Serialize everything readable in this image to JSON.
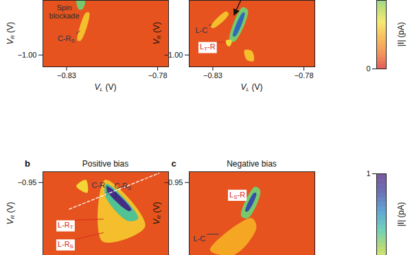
{
  "chart_data": [
    {
      "type": "heatmap",
      "x_label": [
        "V",
        "L",
        " (V)"
      ],
      "y_label": [
        "V",
        "R",
        " (V)"
      ],
      "xlim": [
        -0.843,
        -0.774
      ],
      "xticks": [
        -0.83,
        -0.78
      ],
      "ylim": [
        -1.0065,
        -0.97
      ],
      "yticks": [
        {
          "value": -1,
          "label": "−1.00"
        }
      ],
      "background_current": 0.08,
      "features": [
        {
          "points": [
            [
              -0.8245,
              -0.97
            ],
            [
              -0.82,
              -0.97
            ],
            [
              -0.8212,
              -0.9748
            ],
            [
              -0.8232,
              -0.975
            ]
          ],
          "current": 0.55
        },
        {
          "points": [
            [
              -0.8194,
              -0.9768
            ],
            [
              -0.8175,
              -0.9768
            ],
            [
              -0.8221,
              -0.992
            ],
            [
              -0.824,
              -0.992
            ]
          ],
          "current": 0.3
        }
      ],
      "annotations": [
        {
          "lines": [
            [
              "Spin"
            ],
            [
              "blockade"
            ]
          ],
          "at": [
            -0.8311,
            -0.9768
          ],
          "pointer": [
            -0.8236,
            -0.973
          ],
          "color": "#2b2b2b"
        },
        {
          "lines": [
            [
              "C-R",
              "S"
            ]
          ],
          "at": [
            -0.83,
            -0.9916
          ],
          "pointer": [
            -0.8225,
            -0.987
          ],
          "color": "#1f3550"
        }
      ]
    },
    {
      "type": "heatmap",
      "x_label": [
        "V",
        "L",
        " (V)"
      ],
      "y_label": [
        "V",
        "R",
        " (V)"
      ],
      "xlim": [
        -0.843,
        -0.774
      ],
      "xticks": [
        -0.83,
        -0.78
      ],
      "ylim": [
        -1.0065,
        -0.97
      ],
      "yticks": [
        {
          "value": -1,
          "label": "−1.00"
        }
      ],
      "background_current": 0.08,
      "features": [
        {
          "points": [
            [
              -0.8312,
              -0.9844
            ],
            [
              -0.8296,
              -0.9852
            ],
            [
              -0.8213,
              -0.9776
            ],
            [
              -0.8228,
              -0.9761
            ]
          ],
          "current": 0.3
        },
        {
          "points": [
            [
              -0.8209,
              -0.992
            ],
            [
              -0.8182,
              -0.9927
            ],
            [
              -0.8107,
              -0.9757
            ],
            [
              -0.8137,
              -0.9738
            ]
          ],
          "current": 0.55
        },
        {
          "points": [
            [
              -0.819,
              -0.9897
            ],
            [
              -0.8175,
              -0.9897
            ],
            [
              -0.8125,
              -0.9768
            ],
            [
              -0.8137,
              -0.9768
            ]
          ],
          "current": 0.8
        },
        {
          "points": [
            [
              -0.8228,
              -0.992
            ],
            [
              -0.8197,
              -0.992
            ],
            [
              -0.8205,
              -0.995
            ],
            [
              -0.822,
              -0.995
            ]
          ],
          "current": 0.35
        },
        {
          "points": [
            [
              -0.8126,
              -0.9973
            ],
            [
              -0.8084,
              -0.998
            ],
            [
              -0.8076,
              -1.0033
            ],
            [
              -0.8114,
              -1.0026
            ]
          ],
          "current": 0.3
        }
      ],
      "annotations": [
        {
          "lines": [
            [
              "L-C"
            ]
          ],
          "at": [
            -0.8361,
            -0.987
          ],
          "pointer": [
            -0.8304,
            -0.9836
          ],
          "color": "#1f3550"
        },
        {
          "lines": [
            [
              "L",
              "T",
              "-R"
            ]
          ],
          "at": [
            -0.8327,
            -0.9961
          ],
          "pointer": [
            -0.8228,
            -0.9931
          ],
          "color": "#d7261e",
          "marker": "box"
        }
      ],
      "arrows": [
        [
          [
            -0.8144,
            -0.97
          ],
          [
            -0.8182,
            -0.9783
          ]
        ]
      ]
    },
    {
      "type": "heatmap",
      "panel_label": "b",
      "title": "Positive bias",
      "y_label": [
        "V",
        "R",
        " (V)"
      ],
      "xlim": [
        -0.843,
        -0.774
      ],
      "xticks": [],
      "ylim": [
        -0.9905,
        -0.944
      ],
      "yticks": [
        -0.95
      ],
      "tick_labels": "y",
      "background_current": 0.08,
      "features": [
        {
          "points": [
            [
              -0.8247,
              -0.952
            ],
            [
              -0.8194,
              -0.9485
            ],
            [
              -0.8186,
              -0.9557
            ]
          ],
          "current": 0.35
        },
        {
          "points": [
            [
              -0.8088,
              -0.9485
            ],
            [
              -0.7868,
              -0.9743
            ],
            [
              -0.8103,
              -0.9827
            ]
          ],
          "current": 0.3
        },
        {
          "points": [
            [
              -0.808,
              -0.9508
            ],
            [
              -0.7906,
              -0.9698
            ],
            [
              -0.7963,
              -0.9713
            ],
            [
              -0.8088,
              -0.9573
            ]
          ],
          "current": 0.6
        },
        {
          "points": [
            [
              -0.8073,
              -0.9523
            ],
            [
              -0.7944,
              -0.9652
            ],
            [
              -0.7959,
              -0.9659
            ],
            [
              -0.808,
              -0.9542
            ]
          ],
          "current": 0.95
        }
      ],
      "dashed_lines": [
        {
          "points": [
            [
              -0.8285,
              -0.9648
            ],
            [
              -0.7792,
              -0.9448
            ]
          ],
          "line_style": "dashed"
        }
      ],
      "annotations": [
        {
          "lines": [
            [
              "C-R",
              "T"
            ]
          ],
          "at": [
            -0.8114,
            -0.952
          ],
          "pointer": [
            -0.8076,
            -0.9573
          ],
          "color": "#1f3550"
        },
        {
          "lines": [
            [
              "C-R",
              "S"
            ]
          ],
          "at": [
            -0.7989,
            -0.9523
          ],
          "pointer": [
            -0.8027,
            -0.9592
          ],
          "color": "#1f3550"
        },
        {
          "lines": [
            [
              "L-R",
              "T"
            ]
          ],
          "at": [
            -0.8304,
            -0.9743
          ],
          "pointer": [
            -0.8095,
            -0.9705
          ],
          "color": "#d7261e",
          "marker": "box"
        },
        {
          "lines": [
            [
              "L-R",
              "S"
            ]
          ],
          "at": [
            -0.8304,
            -0.9849
          ],
          "pointer": [
            -0.8095,
            -0.9781
          ],
          "color": "#d7261e",
          "marker": "box"
        }
      ]
    },
    {
      "type": "heatmap",
      "panel_label": "c",
      "title": "Negative bias",
      "y_label": [
        "V",
        "R",
        " (V)"
      ],
      "xlim": [
        -0.843,
        -0.774
      ],
      "xticks": [],
      "ylim": [
        -0.9905,
        -0.944
      ],
      "yticks": [
        -0.95
      ],
      "tick_labels": "y",
      "background_current": 0.08,
      "features": [
        {
          "points": [
            [
              -0.8315,
              -0.9876
            ],
            [
              -0.8088,
              -0.9698
            ],
            [
              -0.8061,
              -0.9751
            ],
            [
              -0.8183,
              -0.9902
            ]
          ],
          "current": 0.25
        },
        {
          "points": [
            [
              -0.8145,
              -0.9686
            ],
            [
              -0.8107,
              -0.9698
            ],
            [
              -0.8039,
              -0.9546
            ],
            [
              -0.8069,
              -0.9523
            ]
          ],
          "current": 0.55
        },
        {
          "points": [
            [
              -0.8122,
              -0.966
            ],
            [
              -0.8107,
              -0.966
            ],
            [
              -0.8061,
              -0.9561
            ],
            [
              -0.8073,
              -0.9557
            ]
          ],
          "current": 0.85
        }
      ],
      "annotations": [
        {
          "lines": [
            [
              "L",
              "S",
              "-R"
            ]
          ],
          "at": [
            -0.8164,
            -0.9573
          ],
          "color": "#d7261e",
          "marker": "box"
        },
        {
          "lines": [
            [
              "L-C"
            ]
          ],
          "at": [
            -0.8372,
            -0.9819
          ],
          "pointer": [
            -0.8266,
            -0.9789
          ],
          "color": "#1f3550"
        }
      ]
    },
    {
      "type": "colorbar",
      "label": "|I| (pA)",
      "clim": [
        0,
        0.55
      ],
      "cticks": [
        0
      ]
    },
    {
      "type": "colorbar",
      "label": "|I| (pA)",
      "clim": [
        0.45,
        1
      ],
      "cticks": [
        1
      ]
    }
  ]
}
